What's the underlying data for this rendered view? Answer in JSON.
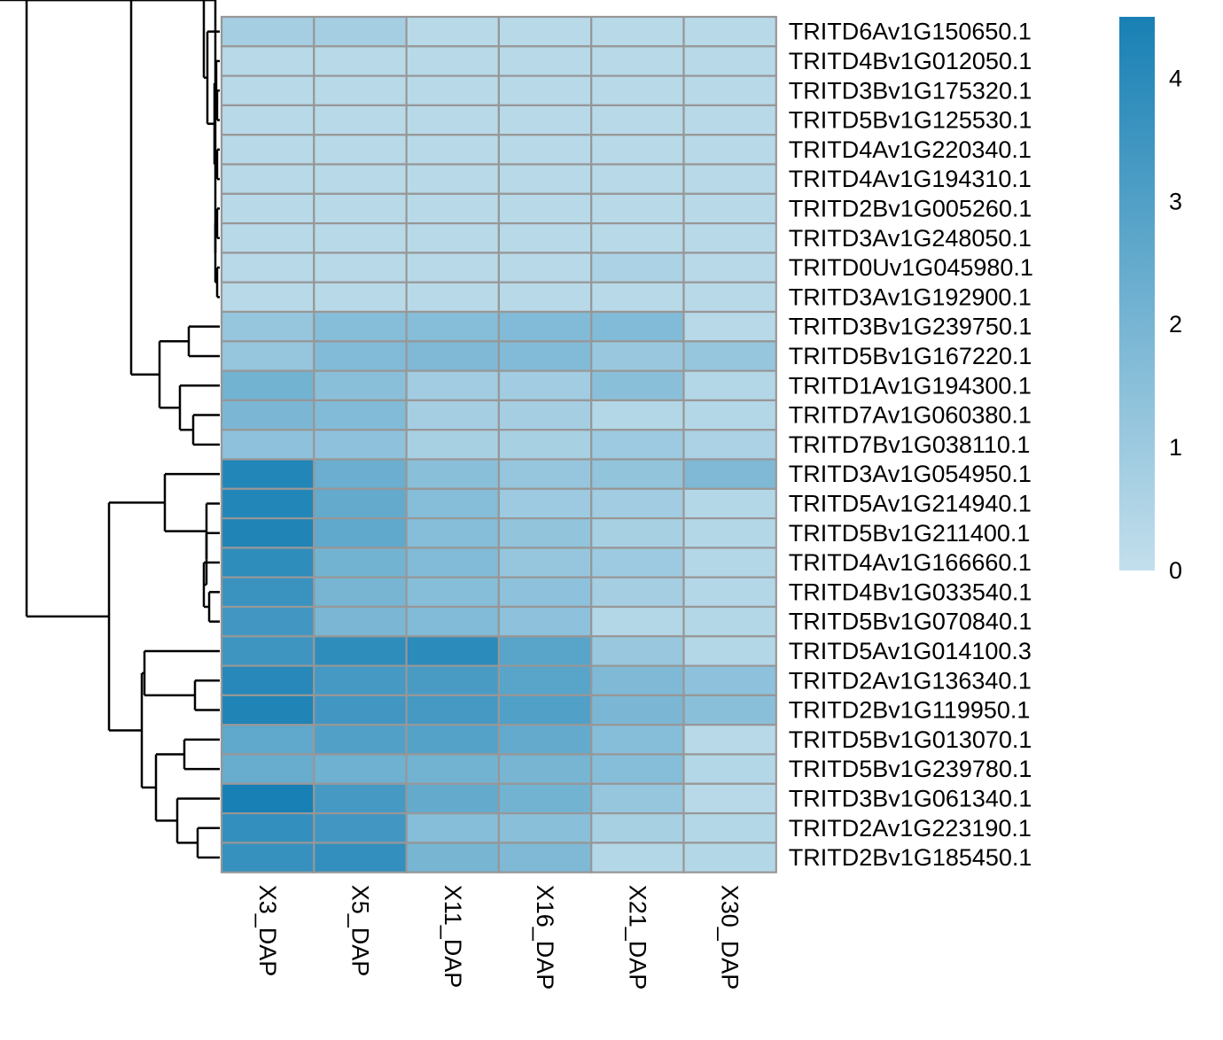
{
  "chart_data": {
    "type": "heatmap",
    "title": "",
    "columns": [
      "X3_DAP",
      "X5_DAP",
      "X11_DAP",
      "X16_DAP",
      "X21_DAP",
      "X30_DAP"
    ],
    "rows": [
      "TRITD6Av1G150650.1",
      "TRITD4Bv1G012050.1",
      "TRITD3Bv1G175320.1",
      "TRITD5Bv1G125530.1",
      "TRITD4Av1G220340.1",
      "TRITD4Av1G194310.1",
      "TRITD2Bv1G005260.1",
      "TRITD3Av1G248050.1",
      "TRITD0Uv1G045980.1",
      "TRITD3Av1G192900.1",
      "TRITD3Bv1G239750.1",
      "TRITD5Bv1G167220.1",
      "TRITD1Av1G194300.1",
      "TRITD7Av1G060380.1",
      "TRITD7Bv1G038110.1",
      "TRITD3Av1G054950.1",
      "TRITD5Av1G214940.1",
      "TRITD5Bv1G211400.1",
      "TRITD4Av1G166660.1",
      "TRITD4Bv1G033540.1",
      "TRITD5Bv1G070840.1",
      "TRITD5Av1G014100.3",
      "TRITD2Av1G136340.1",
      "TRITD2Bv1G119950.1",
      "TRITD5Bv1G013070.1",
      "TRITD5Bv1G239780.1",
      "TRITD3Bv1G061340.1",
      "TRITD2Av1G223190.1",
      "TRITD2Bv1G185450.1"
    ],
    "values": [
      [
        0.8,
        0.8,
        0.3,
        0.3,
        0.3,
        0.3
      ],
      [
        0.3,
        0.3,
        0.3,
        0.3,
        0.3,
        0.3
      ],
      [
        0.3,
        0.3,
        0.3,
        0.3,
        0.3,
        0.3
      ],
      [
        0.3,
        0.3,
        0.3,
        0.3,
        0.3,
        0.3
      ],
      [
        0.3,
        0.3,
        0.3,
        0.3,
        0.3,
        0.3
      ],
      [
        0.3,
        0.3,
        0.3,
        0.3,
        0.3,
        0.3
      ],
      [
        0.3,
        0.3,
        0.3,
        0.3,
        0.3,
        0.3
      ],
      [
        0.3,
        0.3,
        0.3,
        0.3,
        0.3,
        0.3
      ],
      [
        0.3,
        0.3,
        0.3,
        0.3,
        0.6,
        0.3
      ],
      [
        0.3,
        0.3,
        0.3,
        0.3,
        0.3,
        0.3
      ],
      [
        1.2,
        1.6,
        1.6,
        1.7,
        1.7,
        0.3
      ],
      [
        1.2,
        1.7,
        1.8,
        1.7,
        1.1,
        1.2
      ],
      [
        2.1,
        1.5,
        0.9,
        0.9,
        1.5,
        0.4
      ],
      [
        1.9,
        1.7,
        0.8,
        0.8,
        0.4,
        0.4
      ],
      [
        1.4,
        1.4,
        0.7,
        0.7,
        1.0,
        0.6
      ],
      [
        4.2,
        2.3,
        1.5,
        1.2,
        1.3,
        1.8
      ],
      [
        4.2,
        2.5,
        1.6,
        1.0,
        0.9,
        0.4
      ],
      [
        4.3,
        2.6,
        1.6,
        1.3,
        0.7,
        0.4
      ],
      [
        3.9,
        2.1,
        1.7,
        1.2,
        1.0,
        0.4
      ],
      [
        3.6,
        2.0,
        1.6,
        1.4,
        0.8,
        0.4
      ],
      [
        3.4,
        1.9,
        1.7,
        1.4,
        0.4,
        0.4
      ],
      [
        3.5,
        3.9,
        4.0,
        2.8,
        1.1,
        0.4
      ],
      [
        4.1,
        3.3,
        3.2,
        2.8,
        1.8,
        1.4
      ],
      [
        4.3,
        3.4,
        3.3,
        3.0,
        1.9,
        1.5
      ],
      [
        2.6,
        3.0,
        2.9,
        2.5,
        1.6,
        0.3
      ],
      [
        2.4,
        2.2,
        2.1,
        2.0,
        1.6,
        0.4
      ],
      [
        4.6,
        3.3,
        2.5,
        2.1,
        1.2,
        0.3
      ],
      [
        3.8,
        3.4,
        1.6,
        1.5,
        0.7,
        0.4
      ],
      [
        3.7,
        3.8,
        2.0,
        1.8,
        0.4,
        0.4
      ]
    ],
    "color_scale": {
      "min": 0,
      "max": 4.5,
      "low_color": "#c3dfec",
      "high_color": "#1880b4",
      "ticks": [
        "0",
        "1",
        "2",
        "3",
        "4"
      ],
      "tick_values": [
        0,
        1,
        2,
        3,
        4
      ]
    },
    "cell_border_color": "#979797",
    "dendrogram": "rows",
    "legend_placement": "right"
  }
}
